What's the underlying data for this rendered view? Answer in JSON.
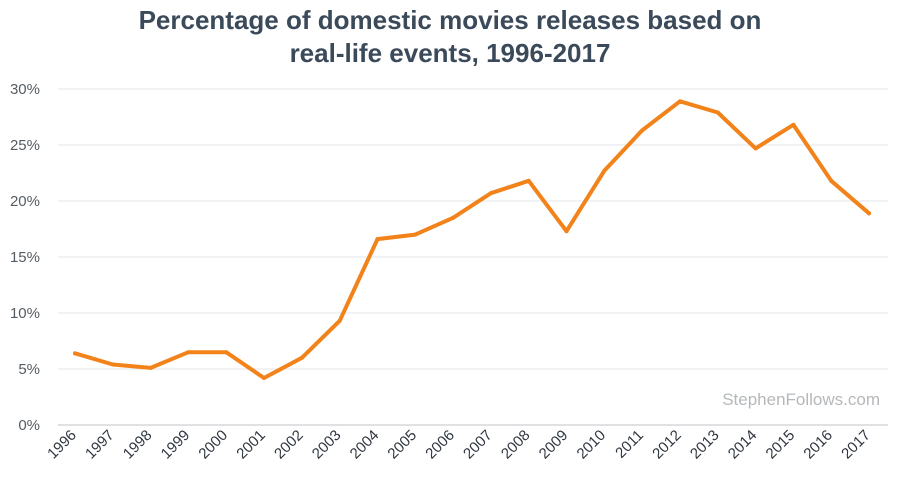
{
  "chart_data": {
    "type": "line",
    "title_line1": "Percentage of domestic movies releases based on",
    "title_line2": "real-life events, 1996-2017",
    "x": [
      "1996",
      "1997",
      "1998",
      "1999",
      "2000",
      "2001",
      "2002",
      "2003",
      "2004",
      "2005",
      "2006",
      "2007",
      "2008",
      "2009",
      "2010",
      "2011",
      "2012",
      "2013",
      "2014",
      "2015",
      "2016",
      "2017"
    ],
    "series": [
      {
        "values": [
          6.4,
          5.4,
          5.1,
          6.5,
          6.5,
          4.2,
          6.0,
          9.3,
          16.6,
          17.0,
          18.5,
          20.7,
          21.8,
          17.3,
          22.7,
          26.3,
          28.9,
          27.9,
          24.7,
          26.8,
          21.8,
          18.9
        ]
      }
    ],
    "ylim": [
      0,
      30
    ],
    "yticks": [
      "0%",
      "5%",
      "10%",
      "15%",
      "20%",
      "25%",
      "30%"
    ],
    "ytick_values": [
      0,
      5,
      10,
      15,
      20,
      25,
      30
    ],
    "grid": true,
    "line_color": "#f2831a",
    "watermark": "StephenFollows.com"
  }
}
